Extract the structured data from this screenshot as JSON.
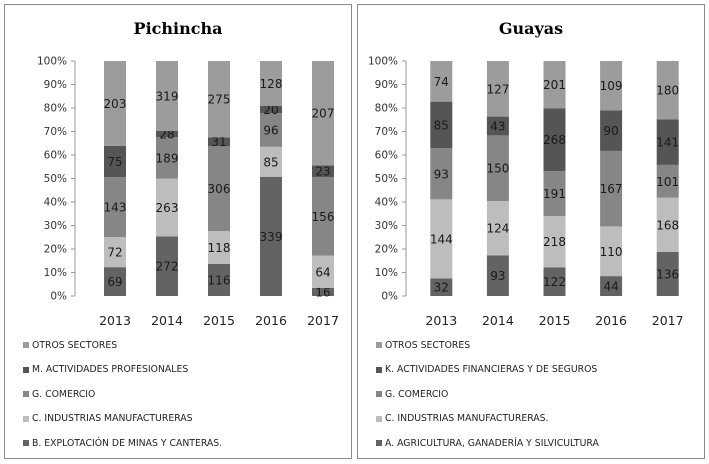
{
  "chart_data": [
    {
      "type": "bar",
      "stacked": "percent",
      "title": "Pichincha",
      "categories": [
        "2013",
        "2014",
        "2015",
        "2016",
        "2017"
      ],
      "ylim": [
        0,
        100
      ],
      "y_ticks": [
        "0%",
        "10%",
        "20%",
        "30%",
        "40%",
        "50%",
        "60%",
        "70%",
        "80%",
        "90%",
        "100%"
      ],
      "grid": false,
      "legend_position": "bottom",
      "series": [
        {
          "name": "B. EXPLOTACIÓN DE MINAS Y CANTERAS.",
          "values": [
            69,
            272,
            116,
            339,
            16
          ],
          "color": "#636363"
        },
        {
          "name": "C. INDUSTRIAS MANUFACTURERAS",
          "values": [
            72,
            263,
            118,
            85,
            64
          ],
          "color": "#bdbdbd"
        },
        {
          "name": "G. COMERCIO",
          "values": [
            143,
            189,
            306,
            96,
            156
          ],
          "color": "#868686"
        },
        {
          "name": "M. ACTIVIDADES PROFESIONALES",
          "values": [
            75,
            28,
            31,
            20,
            23
          ],
          "color": "#555555"
        },
        {
          "name": "OTROS SECTORES",
          "values": [
            203,
            319,
            275,
            128,
            207
          ],
          "color": "#9c9c9c"
        }
      ]
    },
    {
      "type": "bar",
      "stacked": "percent",
      "title": "Guayas",
      "categories": [
        "2013",
        "2014",
        "2015",
        "2016",
        "2017"
      ],
      "ylim": [
        0,
        100
      ],
      "y_ticks": [
        "0%",
        "10%",
        "20%",
        "30%",
        "40%",
        "50%",
        "60%",
        "70%",
        "80%",
        "90%",
        "100%"
      ],
      "grid": false,
      "legend_position": "bottom",
      "series": [
        {
          "name": "A. AGRICULTURA, GANADERÍA Y SILVICULTURA",
          "values": [
            32,
            93,
            122,
            44,
            136
          ],
          "color": "#636363"
        },
        {
          "name": "C. INDUSTRIAS MANUFACTURERAS.",
          "values": [
            144,
            124,
            218,
            110,
            168
          ],
          "color": "#bdbdbd"
        },
        {
          "name": "G. COMERCIO",
          "values": [
            93,
            150,
            191,
            167,
            101
          ],
          "color": "#868686"
        },
        {
          "name": "K. ACTIVIDADES FINANCIERAS Y DE SEGUROS",
          "values": [
            85,
            43,
            268,
            90,
            141
          ],
          "color": "#555555"
        },
        {
          "name": "OTROS SECTORES",
          "values": [
            74,
            127,
            201,
            109,
            180
          ],
          "color": "#9c9c9c"
        }
      ]
    }
  ]
}
